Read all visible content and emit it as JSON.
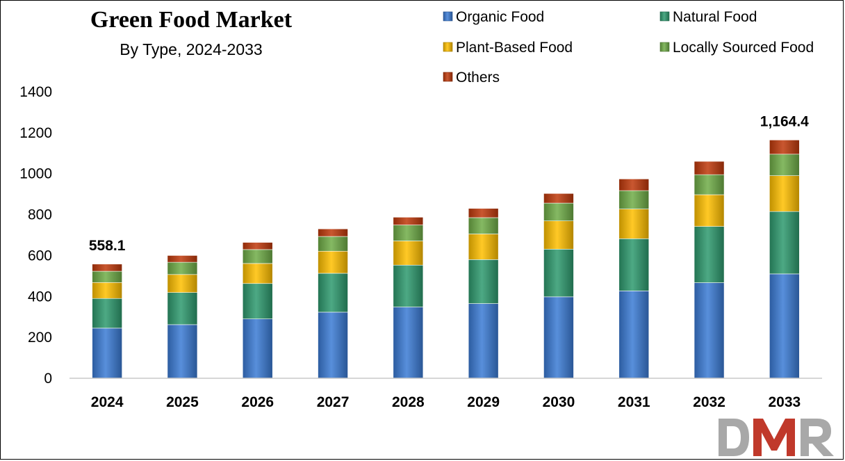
{
  "chart_data": {
    "type": "bar",
    "stacked": true,
    "title": "Green Food Market",
    "subtitle": "By Type, 2024-2033",
    "categories": [
      "2024",
      "2025",
      "2026",
      "2027",
      "2028",
      "2029",
      "2030",
      "2031",
      "2032",
      "2033"
    ],
    "ylim": [
      0,
      1400
    ],
    "yticks": [
      0,
      200,
      400,
      600,
      800,
      1000,
      1200,
      1400
    ],
    "grid": false,
    "legend_position": "top-right",
    "series": [
      {
        "name": "Organic Food",
        "color": "#3a7bd5",
        "values": [
          245,
          262,
          290,
          323,
          348,
          365,
          398,
          427,
          467,
          510
        ]
      },
      {
        "name": "Natural Food",
        "color": "#2e9a6e",
        "values": [
          145,
          157,
          173,
          190,
          205,
          215,
          233,
          255,
          275,
          305
        ]
      },
      {
        "name": "Plant-Based Food",
        "color": "#ffc000",
        "values": [
          78,
          88,
          98,
          108,
          118,
          125,
          138,
          145,
          155,
          175
        ]
      },
      {
        "name": "Locally Sourced Food",
        "color": "#70ad47",
        "values": [
          55,
          60,
          68,
          72,
          78,
          80,
          87,
          90,
          98,
          105
        ]
      },
      {
        "name": "Others",
        "color": "#c0390b",
        "values": [
          35,
          33,
          35,
          37,
          38,
          45,
          47,
          57,
          65,
          69.4
        ]
      }
    ],
    "annotations": [
      {
        "category": "2024",
        "text": "558.1"
      },
      {
        "category": "2033",
        "text": "1,164.4"
      }
    ]
  },
  "branding": {
    "logo_text": "DMR"
  }
}
